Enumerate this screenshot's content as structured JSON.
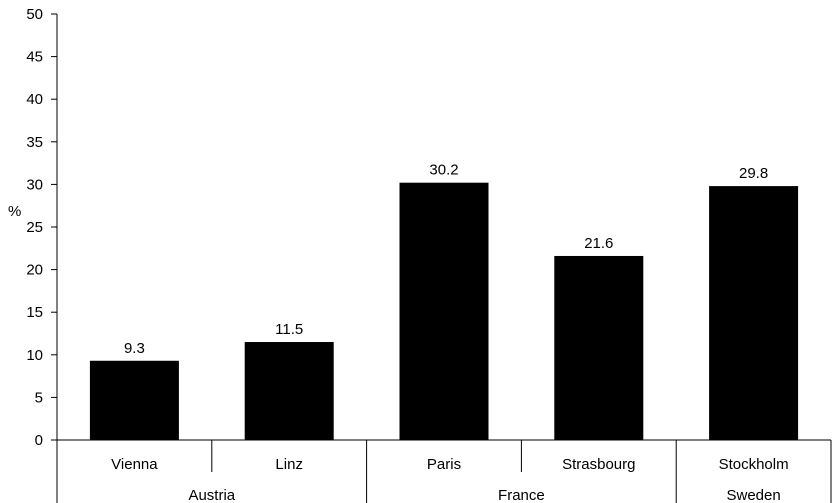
{
  "chart_data": {
    "type": "bar",
    "ylabel": "%",
    "ylim": [
      0,
      50
    ],
    "yticks": [
      0,
      5,
      10,
      15,
      20,
      25,
      30,
      35,
      40,
      45,
      50
    ],
    "grid": false,
    "bar_color": "#000000",
    "categories": [
      "Vienna",
      "Linz",
      "Paris",
      "Strasbourg",
      "Stockholm"
    ],
    "values": [
      9.3,
      11.5,
      30.2,
      21.6,
      29.8
    ],
    "value_labels": [
      "9.3",
      "11.5",
      "30.2",
      "21.6",
      "29.8"
    ],
    "groups": [
      {
        "label": "Austria",
        "span": 2
      },
      {
        "label": "France",
        "span": 2
      },
      {
        "label": "Sweden",
        "span": 1
      }
    ]
  }
}
